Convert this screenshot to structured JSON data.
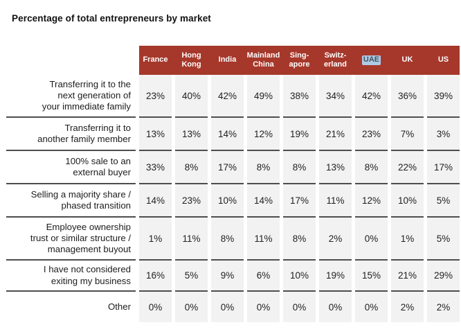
{
  "title": "Percentage of total entrepreneurs by market",
  "chart_data": {
    "type": "table",
    "title": "Percentage of total entrepreneurs by market",
    "unit": "%",
    "columns": [
      "France",
      "Hong Kong",
      "India",
      "Mainland China",
      "Singapore",
      "Switzerland",
      "UAE",
      "UK",
      "US"
    ],
    "column_display": [
      "France",
      "Hong\nKong",
      "India",
      "Mainland\nChina",
      "Sing-\napore",
      "Switz-\nerland",
      "UAE",
      "UK",
      "US"
    ],
    "highlighted_column": "UAE",
    "rows": [
      {
        "label": "Transferring it to the next generation of your immediate family",
        "label_display": "Transferring it to the\nnext generation of\nyour immediate family",
        "values": [
          23,
          40,
          42,
          49,
          38,
          34,
          42,
          36,
          39
        ]
      },
      {
        "label": "Transferring it to another family member",
        "label_display": "Transferring it to\nanother family member",
        "values": [
          13,
          13,
          14,
          12,
          19,
          21,
          23,
          7,
          3
        ]
      },
      {
        "label": "100% sale to an external buyer",
        "label_display": "100% sale to an\nexternal buyer",
        "values": [
          33,
          8,
          17,
          8,
          8,
          13,
          8,
          22,
          17
        ]
      },
      {
        "label": "Selling a majority share / phased transition",
        "label_display": "Selling a majority share /\nphased transition",
        "values": [
          14,
          23,
          10,
          14,
          17,
          11,
          12,
          10,
          5
        ]
      },
      {
        "label": "Employee ownership trust or similar structure / management buyout",
        "label_display": "Employee ownership\ntrust or similar structure /\nmanagement buyout",
        "values": [
          1,
          11,
          8,
          11,
          8,
          2,
          0,
          1,
          5
        ]
      },
      {
        "label": "I have not considered exiting my business",
        "label_display": "I have not considered\nexiting my business",
        "values": [
          16,
          5,
          9,
          6,
          10,
          19,
          15,
          21,
          29
        ]
      },
      {
        "label": "Other",
        "label_display": "Other",
        "values": [
          0,
          0,
          0,
          0,
          0,
          0,
          0,
          2,
          2
        ]
      }
    ]
  },
  "colors": {
    "header_bg": "#a6382b",
    "header_text": "#ffffff",
    "cell_bg": "#f2f2f2",
    "row_divider": "#4d4d4d",
    "uae_highlight_bg": "#aecbe6",
    "uae_highlight_text": "#44525e",
    "text": "#1c1c1c"
  }
}
